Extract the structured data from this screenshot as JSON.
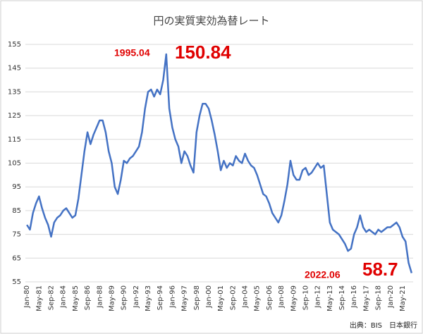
{
  "chart_data": {
    "type": "line",
    "title": "円の実質実効為替レート",
    "categories": [
      "Jan-80",
      null,
      null,
      null,
      "May-81",
      null,
      null,
      null,
      "Sep-82",
      null,
      null,
      null,
      "Jan-84",
      null,
      null,
      null,
      "May-85",
      null,
      null,
      null,
      "Sep-86",
      null,
      null,
      null,
      "Jan-88",
      null,
      null,
      null,
      "May-89",
      null,
      null,
      null,
      "Sep-90",
      null,
      null,
      null,
      "Jan-92",
      null,
      null,
      null,
      "May-93",
      null,
      null,
      null,
      "Sep-94",
      null,
      null,
      null,
      "Jan-96",
      null,
      null,
      null,
      "May-97",
      null,
      null,
      null,
      "Sep-98",
      null,
      null,
      null,
      "Jan-00",
      null,
      null,
      null,
      "May-01",
      null,
      null,
      null,
      "Sep-02",
      null,
      null,
      null,
      "Jan-04",
      null,
      null,
      null,
      "May-05",
      null,
      null,
      null,
      "Sep-06",
      null,
      null,
      null,
      "Jan-08",
      null,
      null,
      null,
      "May-09",
      null,
      null,
      null,
      "Sep-10",
      null,
      null,
      null,
      "Jan-12",
      null,
      null,
      null,
      "May-13",
      null,
      null,
      null,
      "Sep-14",
      null,
      null,
      null,
      "Jan-16",
      null,
      null,
      null,
      "May-17",
      null,
      null,
      null,
      "Sep-18",
      null,
      null,
      null,
      "Jan-20",
      null,
      null,
      null,
      "May-21",
      null,
      null,
      null
    ],
    "values": [
      79,
      77,
      84,
      88,
      91,
      86,
      82,
      79,
      74,
      80,
      82,
      83,
      85,
      86,
      84,
      82,
      83,
      90,
      100,
      110,
      118,
      113,
      117,
      120,
      123,
      123,
      118,
      110,
      105,
      95,
      92,
      98,
      106,
      105,
      107,
      108,
      110,
      112,
      118,
      128,
      135,
      136,
      133,
      136,
      134,
      140,
      150.84,
      128,
      120,
      115,
      112,
      105,
      110,
      108,
      104,
      101,
      118,
      125,
      130,
      130,
      128,
      123,
      117,
      110,
      102,
      106,
      103,
      105,
      104,
      108,
      106,
      105,
      109,
      106,
      104,
      103,
      100,
      96,
      92,
      91,
      88,
      84,
      82,
      80,
      83,
      89,
      96,
      106,
      100,
      98,
      98,
      102,
      103,
      100,
      101,
      103,
      105,
      103,
      104,
      92,
      80,
      77,
      76,
      75,
      73,
      71,
      68,
      69,
      75,
      78,
      83,
      78,
      76,
      77,
      76,
      75,
      77,
      76,
      77,
      78,
      78,
      79,
      80,
      78,
      74,
      72,
      63,
      58.7
    ],
    "color": "#4472c4",
    "ylim": [
      55,
      155
    ],
    "yticks": [
      55,
      65,
      75,
      85,
      95,
      105,
      115,
      125,
      135,
      145,
      155
    ],
    "grid": true,
    "annotations": [
      "1995.04",
      "150.84",
      "2022.06",
      "58.7"
    ],
    "source": "出典：BIS　日本銀行"
  }
}
